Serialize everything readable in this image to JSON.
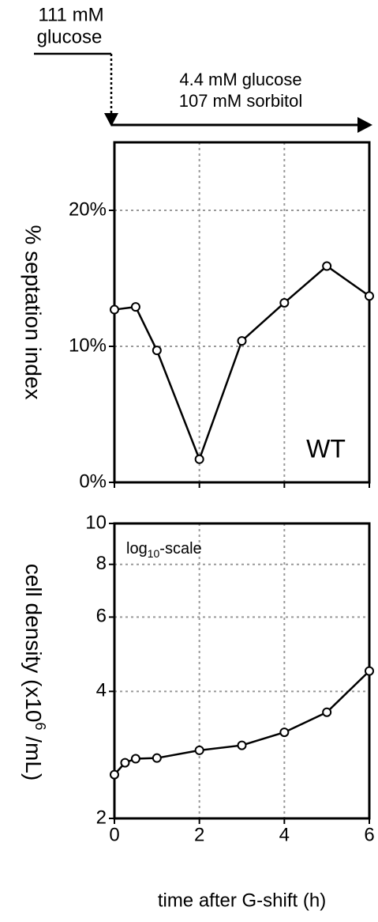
{
  "chart_data": [
    {
      "type": "line",
      "ylabel": "% septation index",
      "annotations": [
        "111 mM",
        "glucose",
        "4.4 mM glucose",
        "107 mM sorbitol",
        "WT"
      ],
      "x": [
        0,
        0.5,
        1,
        2,
        3,
        4,
        5,
        6
      ],
      "series": [
        {
          "color": "#000000",
          "values": [
            12.7,
            12.9,
            9.7,
            1.7,
            10.4,
            13.2,
            15.9,
            13.7
          ]
        }
      ],
      "xlim": [
        0,
        6
      ],
      "xticks": [
        0,
        2,
        4,
        6
      ],
      "ylim": [
        0,
        25
      ],
      "yticks": [
        {
          "value": 0,
          "label": "0%"
        },
        {
          "value": 10,
          "label": "10%"
        },
        {
          "value": 20,
          "label": "20%"
        }
      ],
      "grid": true,
      "log_scale": false
    },
    {
      "type": "line",
      "ylabel": [
        "cell density (x10",
        "6",
        " /mL)"
      ],
      "xlabel": "time after G-shift (h)",
      "annotations": [
        [
          "log",
          "10",
          "-scale"
        ]
      ],
      "x": [
        0,
        0.25,
        0.5,
        1,
        2,
        3,
        4,
        5,
        6
      ],
      "series": [
        {
          "color": "#000000",
          "values": [
            2.54,
            2.71,
            2.77,
            2.78,
            2.9,
            2.98,
            3.2,
            3.57,
            4.47
          ]
        }
      ],
      "xlim": [
        0,
        6
      ],
      "xticks": [
        0,
        2,
        4,
        6
      ],
      "ylim": [
        2,
        10
      ],
      "yticks": [
        2,
        4,
        6,
        8,
        10
      ],
      "grid": true,
      "log_scale": true
    }
  ]
}
